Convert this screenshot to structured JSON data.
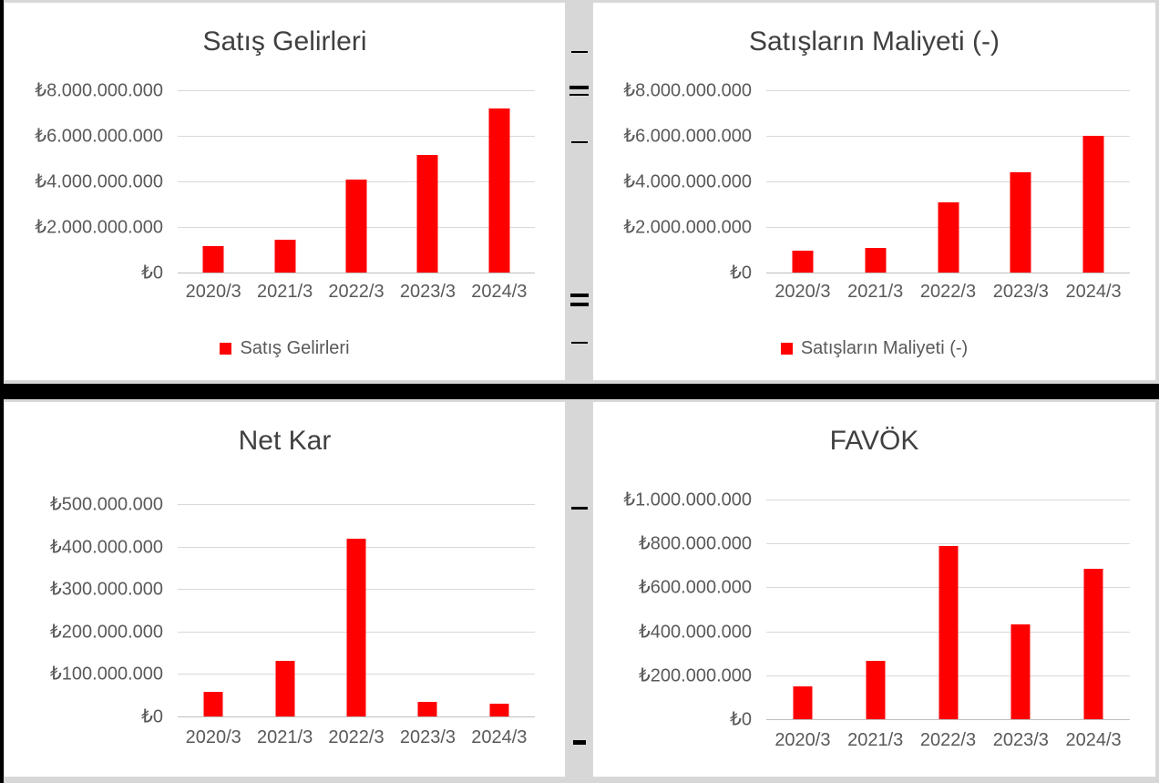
{
  "colors": {
    "bar": "#FF0000",
    "title_text": "#404040",
    "axis_text": "#595959",
    "gridline": "#D9D9D9",
    "panel_background": "#FFFFFF",
    "gutter_background": "#D7D7D7",
    "divider": "#000000"
  },
  "chart_data": [
    {
      "type": "bar",
      "title": "Satış Gelirleri",
      "categories": [
        "2020/3",
        "2021/3",
        "2022/3",
        "2023/3",
        "2024/3"
      ],
      "values": [
        1150000000,
        1450000000,
        4100000000,
        5150000000,
        7200000000
      ],
      "ylim": [
        0,
        8000000000
      ],
      "yticks": [
        {
          "value": 8000000000,
          "label": "₺8.000.000.000"
        },
        {
          "value": 6000000000,
          "label": "₺6.000.000.000"
        },
        {
          "value": 4000000000,
          "label": "₺4.000.000.000"
        },
        {
          "value": 2000000000,
          "label": "₺2.000.000.000"
        },
        {
          "value": 0,
          "label": "₺0"
        }
      ],
      "grid": true,
      "bar_color": "#FF0000",
      "legend": {
        "label": "Satış Gelirleri",
        "position": "bottom",
        "swatch_color": "#FF0000"
      }
    },
    {
      "type": "bar",
      "title": "Satışların Maliyeti (-)",
      "categories": [
        "2020/3",
        "2021/3",
        "2022/3",
        "2023/3",
        "2024/3"
      ],
      "values": [
        950000000,
        1100000000,
        3100000000,
        4400000000,
        6000000000
      ],
      "ylim": [
        0,
        8000000000
      ],
      "yticks": [
        {
          "value": 8000000000,
          "label": "₺8.000.000.000"
        },
        {
          "value": 6000000000,
          "label": "₺6.000.000.000"
        },
        {
          "value": 4000000000,
          "label": "₺4.000.000.000"
        },
        {
          "value": 2000000000,
          "label": "₺2.000.000.000"
        },
        {
          "value": 0,
          "label": "₺0"
        }
      ],
      "grid": true,
      "bar_color": "#FF0000",
      "legend": {
        "label": "Satışların Maliyeti (-)",
        "position": "bottom",
        "swatch_color": "#FF0000"
      }
    },
    {
      "type": "bar",
      "title": "Net Kar",
      "categories": [
        "2020/3",
        "2021/3",
        "2022/3",
        "2023/3",
        "2024/3"
      ],
      "values": [
        57000000,
        130000000,
        418000000,
        34000000,
        30000000
      ],
      "ylim": [
        0,
        500000000
      ],
      "yticks": [
        {
          "value": 500000000,
          "label": "₺500.000.000"
        },
        {
          "value": 400000000,
          "label": "₺400.000.000"
        },
        {
          "value": 300000000,
          "label": "₺300.000.000"
        },
        {
          "value": 200000000,
          "label": "₺200.000.000"
        },
        {
          "value": 100000000,
          "label": "₺100.000.000"
        },
        {
          "value": 0,
          "label": "₺0"
        }
      ],
      "grid": true,
      "bar_color": "#FF0000",
      "legend": null
    },
    {
      "type": "bar",
      "title": "FAVÖK",
      "categories": [
        "2020/3",
        "2021/3",
        "2022/3",
        "2023/3",
        "2024/3"
      ],
      "values": [
        150000000,
        265000000,
        790000000,
        430000000,
        685000000
      ],
      "ylim": [
        0,
        1000000000
      ],
      "yticks": [
        {
          "value": 1000000000,
          "label": "₺1.000.000.000"
        },
        {
          "value": 800000000,
          "label": "₺800.000.000"
        },
        {
          "value": 600000000,
          "label": "₺600.000.000"
        },
        {
          "value": 400000000,
          "label": "₺400.000.000"
        },
        {
          "value": 200000000,
          "label": "₺200.000.000"
        },
        {
          "value": 0,
          "label": "₺0"
        }
      ],
      "grid": true,
      "bar_color": "#FF0000",
      "legend": null
    }
  ]
}
